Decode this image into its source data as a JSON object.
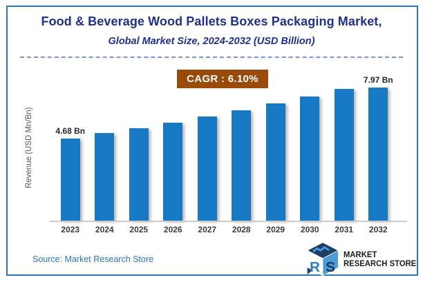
{
  "header": {
    "title": "Food & Beverage Wood Pallets Boxes Packaging Market,",
    "subtitle": "Global Market Size, 2024-2032 (USD Billion)"
  },
  "badge": {
    "text": "CAGR :  6.10%"
  },
  "chart_data": {
    "type": "bar",
    "title": "Food & Beverage Wood Pallets Boxes Packaging Market, Global Market Size, 2024-2032 (USD Billion)",
    "categories": [
      "2023",
      "2024",
      "2025",
      "2026",
      "2027",
      "2028",
      "2029",
      "2030",
      "2031",
      "2032"
    ],
    "values": [
      4.68,
      4.97,
      5.27,
      5.59,
      5.93,
      6.29,
      6.68,
      7.08,
      7.51,
      7.97
    ],
    "bar_labels": [
      "4.68 Bn",
      "",
      "",
      "",
      "",
      "",
      "",
      "",
      "",
      "7.97 Bn"
    ],
    "ylabel": "Revenue (USD Mn/Bn)",
    "xlabel": "",
    "ylim": [
      0,
      8.4
    ],
    "grid": false,
    "legend": "none",
    "cagr_percent": 6.1
  },
  "footer": {
    "source": "Source: Market Research Store",
    "logo": {
      "line1": "MARKET",
      "line2": "RESEARCH STORE",
      "letters": [
        "M",
        "R",
        "S"
      ]
    }
  },
  "colors": {
    "title": "#1F3190",
    "frame_border": "#2E75B6",
    "dashed_line": "#4472C4",
    "badge_bg": "#9A4A08",
    "badge_text": "#FFFFFF",
    "bar": "#1778C4",
    "axis_line": "#C9C9C9",
    "y_axis_label": "#595959",
    "tick_label": "#3A3A3A",
    "value_label": "#262626",
    "source_text": "#2E74B5",
    "logo_dark_blue": "#1C4065",
    "logo_light_blue": "#4D9BD6"
  }
}
